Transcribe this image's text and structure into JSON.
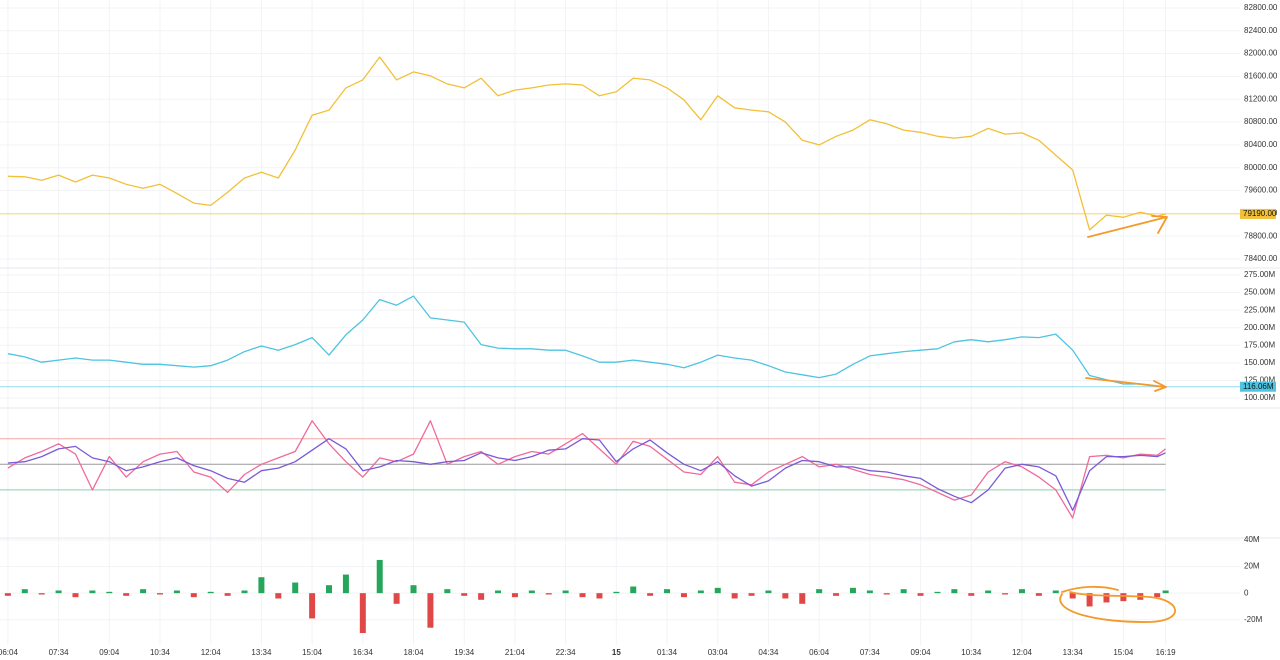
{
  "chart_data": {
    "type": "line",
    "x": [
      0,
      30,
      60,
      90,
      120,
      150,
      180,
      210,
      240,
      270,
      300,
      330,
      360,
      390,
      420,
      450,
      480,
      510,
      540,
      570,
      600,
      630,
      660,
      690,
      720,
      750,
      780,
      810,
      840,
      870,
      900,
      930,
      960,
      990,
      1020,
      1050,
      1080,
      1110,
      1140,
      1170,
      1200,
      1230,
      1260,
      1290,
      1320,
      1350,
      1380,
      1410,
      1440,
      1470,
      1500,
      1530,
      1560,
      1590,
      1620,
      1650,
      1680,
      1710,
      1740,
      1770,
      1800,
      1830,
      1860,
      1890,
      1920,
      1950,
      1980,
      2010,
      2040,
      2055
    ],
    "xlim": [
      -14,
      2187
    ],
    "xticks": [
      {
        "value": 0,
        "label": "06:04"
      },
      {
        "value": 90,
        "label": "07:34"
      },
      {
        "value": 180,
        "label": "09:04"
      },
      {
        "value": 270,
        "label": "10:34"
      },
      {
        "value": 360,
        "label": "12:04"
      },
      {
        "value": 450,
        "label": "13:34"
      },
      {
        "value": 540,
        "label": "15:04"
      },
      {
        "value": 630,
        "label": "16:34"
      },
      {
        "value": 720,
        "label": "18:04"
      },
      {
        "value": 810,
        "label": "19:34"
      },
      {
        "value": 900,
        "label": "21:04"
      },
      {
        "value": 990,
        "label": "22:34"
      },
      {
        "value": 1080,
        "label": "15"
      },
      {
        "value": 1170,
        "label": "01:34"
      },
      {
        "value": 1260,
        "label": "03:04"
      },
      {
        "value": 1350,
        "label": "04:34"
      },
      {
        "value": 1440,
        "label": "06:04"
      },
      {
        "value": 1530,
        "label": "07:34"
      },
      {
        "value": 1620,
        "label": "09:04"
      },
      {
        "value": 1710,
        "label": "10:34"
      },
      {
        "value": 1800,
        "label": "12:04"
      },
      {
        "value": 1890,
        "label": "13:34"
      },
      {
        "value": 1980,
        "label": "15:04"
      },
      {
        "value": 2055,
        "label": "16:19"
      }
    ],
    "panes": [
      {
        "ylim": [
          78242,
          82940
        ],
        "yticks": [
          {
            "value": 78400,
            "label": "78400.00"
          },
          {
            "value": 78800,
            "label": "78800.00"
          },
          {
            "value": 79200,
            "label": "79200.00"
          },
          {
            "value": 79600,
            "label": "79600.00"
          },
          {
            "value": 80000,
            "label": "80000.00"
          },
          {
            "value": 80400,
            "label": "80400.00"
          },
          {
            "value": 80800,
            "label": "80800.00"
          },
          {
            "value": 81200,
            "label": "81200.00"
          },
          {
            "value": 81600,
            "label": "81600.00"
          },
          {
            "value": 82000,
            "label": "82000.00"
          },
          {
            "value": 82400,
            "label": "82400.00"
          },
          {
            "value": 82800,
            "label": "82800.00"
          }
        ],
        "series": [
          {
            "type": "line",
            "color": "#f2c037",
            "last_label": "79190.00",
            "values": [
              79850,
              79840,
              79780,
              79870,
              79750,
              79870,
              79820,
              79710,
              79640,
              79710,
              79550,
              79380,
              79340,
              79570,
              79820,
              79920,
              79820,
              80310,
              80920,
              81010,
              81400,
              81540,
              81940,
              81540,
              81680,
              81610,
              81470,
              81400,
              81570,
              81260,
              81360,
              81400,
              81450,
              81470,
              81450,
              81260,
              81330,
              81570,
              81540,
              81400,
              81190,
              80840,
              81260,
              81050,
              81010,
              80980,
              80800,
              80480,
              80400,
              80550,
              80660,
              80840,
              80770,
              80660,
              80620,
              80550,
              80520,
              80550,
              80690,
              80590,
              80610,
              80480,
              80220,
              79960,
              78910,
              79170,
              79130,
              79220,
              79150,
              79190
            ]
          }
        ]
      },
      {
        "ylim": [
          85.8,
          285
        ],
        "yticks": [
          {
            "value": 100,
            "label": "100.00M"
          },
          {
            "value": 125,
            "label": "125.00M"
          },
          {
            "value": 150,
            "label": "150.00M"
          },
          {
            "value": 175,
            "label": "175.00M"
          },
          {
            "value": 200,
            "label": "200.00M"
          },
          {
            "value": 225,
            "label": "225.00M"
          },
          {
            "value": 250,
            "label": "250.00M"
          },
          {
            "value": 275,
            "label": "275.00M"
          }
        ],
        "series": [
          {
            "type": "line",
            "color": "#4ec4e0",
            "last_label": "116.06M",
            "values": [
              163,
              158.5,
              151,
              154,
              157,
              154,
              154,
              151,
              148,
              148,
              146,
              144,
              146,
              154,
              166,
              174,
              168,
              176,
              186,
              161,
              190,
              211,
              240,
              232,
              245,
              214,
              211,
              208,
              176,
              171,
              170,
              170,
              168,
              168,
              160,
              151,
              151,
              154,
              151,
              148,
              143,
              151,
              161,
              157,
              154,
              146,
              137,
              133,
              129,
              134,
              148,
              160,
              163,
              166,
              168,
              170,
              180,
              183,
              180,
              183,
              187,
              186,
              191,
              168,
              132,
              126,
              120,
              120,
              117,
              116.06
            ]
          }
        ]
      },
      {
        "ylim": [
          -7.6,
          94
        ],
        "levels": [
          70,
          50,
          30
        ],
        "level_colors": [
          "#f3a5a5",
          "#9a9a9a",
          "#86d1a6"
        ],
        "series": [
          {
            "type": "line",
            "color": "#f06a9a",
            "values": [
              47,
              55,
              60,
              66,
              58,
              30,
              56,
              40,
              52,
              58,
              60,
              44,
              40,
              28,
              42,
              50,
              55,
              60,
              84,
              66,
              52,
              40,
              55,
              52,
              58,
              84,
              50,
              56,
              60,
              50,
              56,
              60,
              58,
              66,
              74,
              62,
              50,
              68,
              64,
              54,
              44,
              42,
              56,
              36,
              34,
              44,
              50,
              56,
              48,
              50,
              46,
              42,
              40,
              38,
              34,
              28,
              22,
              26,
              44,
              52,
              48,
              40,
              30,
              8,
              56,
              57,
              55,
              58,
              57,
              62
            ]
          },
          {
            "type": "line",
            "color": "#7a5ad8",
            "values": [
              51,
              52,
              56,
              62,
              64,
              55,
              52,
              45,
              48,
              52,
              55,
              49,
              45,
              39,
              36,
              45,
              47,
              52,
              61,
              70,
              62,
              45,
              48,
              53,
              52,
              50,
              52,
              53,
              59,
              55,
              53,
              56,
              61,
              62,
              70,
              69,
              52,
              62,
              69,
              59,
              50,
              45,
              52,
              41,
              33,
              37,
              47,
              53,
              52,
              48,
              48,
              45,
              44,
              41,
              39,
              31,
              25,
              20,
              30,
              47,
              50,
              48,
              41,
              14,
              45,
              56,
              56,
              57,
              56,
              59
            ]
          }
        ]
      },
      {
        "ylim": [
          -39,
          41.5
        ],
        "yticks": [
          {
            "value": -20,
            "label": "-20M"
          },
          0,
          {
            "value": 20,
            "label": "20M"
          },
          {
            "value": 40,
            "label": "40M"
          }
        ],
        "series": [
          {
            "type": "bar",
            "color": "#26a65b",
            "negative_color": "#e04848",
            "values": [
              -2,
              3,
              -1,
              2,
              -3,
              2,
              1,
              -2,
              3,
              -1,
              2,
              -3,
              1,
              -2,
              2,
              12,
              -4,
              8,
              -19,
              6,
              14,
              -30,
              25,
              -8,
              6,
              -26,
              3,
              -2,
              -5,
              2,
              -3,
              2,
              -1,
              2,
              -3,
              -4,
              1,
              5,
              -2,
              3,
              -3,
              2,
              4,
              -4,
              -2,
              2,
              -4,
              -8,
              3,
              -2,
              4,
              2,
              -1,
              3,
              -2,
              1,
              3,
              -2,
              2,
              -1,
              3,
              -2,
              2,
              -4,
              -10,
              -7,
              -6,
              -5,
              -3,
              2
            ]
          }
        ]
      }
    ]
  }
}
